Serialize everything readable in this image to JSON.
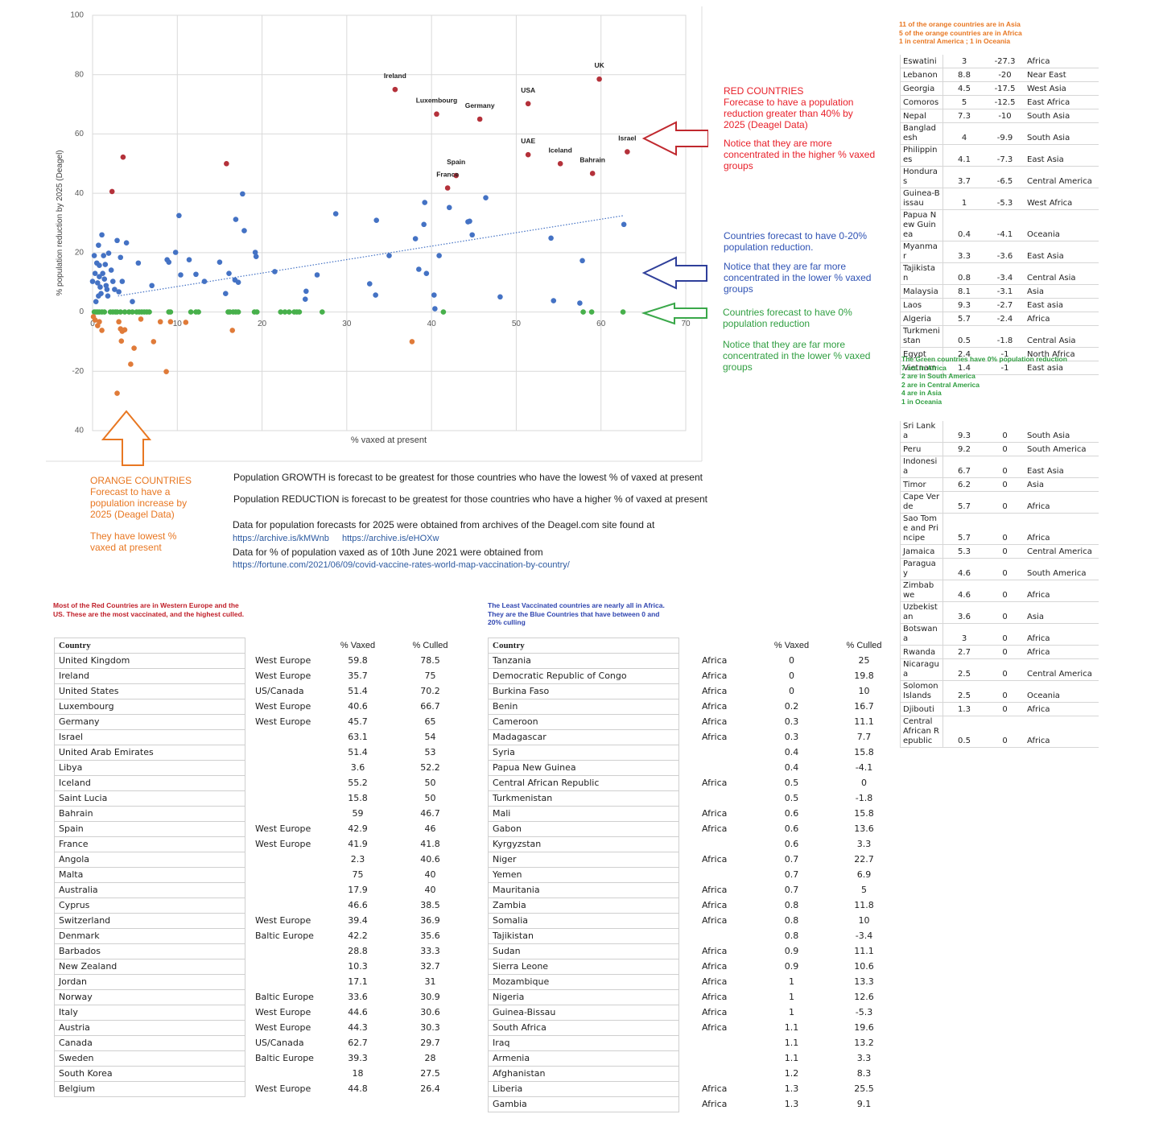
{
  "chart_data": {
    "type": "scatter",
    "xlabel": "% vaxed at present",
    "ylabel": "% population reduction by 2025 (Deagel)",
    "xlim": [
      0,
      70
    ],
    "ylim": [
      -40,
      100
    ],
    "xticks": [
      0,
      10,
      20,
      30,
      40,
      50,
      60,
      70
    ],
    "yticks": [
      100,
      80,
      60,
      40,
      20,
      0,
      -20,
      {
        "value": -40,
        "label": "40"
      }
    ],
    "grid": true,
    "series": [
      {
        "type": "line",
        "style": "dotted",
        "color": "#4472c4",
        "x": [
          3,
          62.7
        ],
        "values": [
          5.4,
          32.5
        ]
      },
      {
        "color": "#b4313a",
        "x": [
          59.8,
          35.7,
          51.4,
          40.6,
          45.7,
          63.1,
          51.4,
          55.2,
          59,
          42.9,
          41.9,
          3.6,
          15.8,
          2.3
        ],
        "values": [
          78.5,
          75,
          70.2,
          66.7,
          65,
          54,
          53,
          50,
          46.7,
          46,
          41.8,
          52.2,
          50,
          40.6
        ],
        "labels": [
          "UK",
          "Ireland",
          "USA",
          "Luxembourg",
          "Germany",
          "Israel",
          "UAE",
          "Iceland",
          "Bahrain",
          "Spain",
          "France",
          null,
          null,
          null
        ]
      },
      {
        "color": "#4472c4",
        "x": [
          0.0,
          0.2,
          0.5,
          0.7,
          0.8,
          1.1,
          1.3,
          1.5,
          1.7,
          0.3,
          0.6,
          0.8,
          0.9,
          1.2,
          1.4,
          1.6,
          1.9,
          2.2,
          0.4,
          0.7,
          1.0,
          1.8,
          2.4,
          2.6,
          2.9,
          3.1,
          3.3,
          3.5,
          4.0,
          4.7,
          5.4,
          7.0,
          8.8,
          9.0,
          9.8,
          10.2,
          10.4,
          11.4,
          12.2,
          13.2,
          15.0,
          15.7,
          16.1,
          16.8,
          16.9,
          17.2,
          17.7,
          17.9,
          19.2,
          19.3,
          21.5,
          25.1,
          25.2,
          26.5,
          28.7,
          32.7,
          33.4,
          33.5,
          35.0,
          38.1,
          38.5,
          39.1,
          39.2,
          39.4,
          40.3,
          40.4,
          40.9,
          42.1,
          44.3,
          44.5,
          44.8,
          46.4,
          48.1,
          54.1,
          54.4,
          57.5,
          57.8,
          62.7
        ],
        "values": [
          10.3,
          19.0,
          16.5,
          22.5,
          15.7,
          26.0,
          19.0,
          16.0,
          7.6,
          13.0,
          9.8,
          11.9,
          8.4,
          13.0,
          11.1,
          8.9,
          19.8,
          14.1,
          3.5,
          5.4,
          6.2,
          5.4,
          10.3,
          7.6,
          24.1,
          6.8,
          18.4,
          10.3,
          23.3,
          3.5,
          16.5,
          8.9,
          17.6,
          16.8,
          20.1,
          32.5,
          12.5,
          17.6,
          12.7,
          10.3,
          16.8,
          6.2,
          13.0,
          10.8,
          31.2,
          10.0,
          39.8,
          27.4,
          20.1,
          18.7,
          13.6,
          4.3,
          7.0,
          12.5,
          33.1,
          9.5,
          5.7,
          30.9,
          19.0,
          24.7,
          14.4,
          29.5,
          36.9,
          13.0,
          5.7,
          1.1,
          19.0,
          35.2,
          30.4,
          30.6,
          26.0,
          38.5,
          5.1,
          24.9,
          3.8,
          3.0,
          17.3,
          29.5
        ]
      },
      {
        "color": "#47b04b",
        "x": [
          0.2,
          0.4,
          0.6,
          0.8,
          1.1,
          1.4,
          2.1,
          2.4,
          2.7,
          2.9,
          3.3,
          3.8,
          4.3,
          4.7,
          5.2,
          5.5,
          5.8,
          6.1,
          6.4,
          6.7,
          9.0,
          9.2,
          11.6,
          12.2,
          12.5,
          16.0,
          16.2,
          16.6,
          16.9,
          17.2,
          19.1,
          19.4,
          22.2,
          22.7,
          23.2,
          23.8,
          24.1,
          24.4,
          27.1,
          41.4,
          57.9,
          58.9,
          62.6
        ],
        "values": [
          0,
          0,
          0,
          0,
          0,
          0,
          0,
          0,
          0,
          0,
          0,
          0,
          0,
          0,
          0,
          0,
          0,
          0,
          0,
          0,
          0,
          0,
          0,
          0,
          0,
          0,
          0,
          0,
          0,
          0,
          0,
          0,
          0,
          0,
          0,
          0,
          0,
          0,
          0,
          0,
          0,
          0,
          0
        ]
      },
      {
        "color": "#e07b39",
        "x": [
          0.1,
          0.3,
          0.6,
          0.8,
          1.1,
          3.1,
          3.3,
          3.5,
          3.8,
          3.4,
          4.9,
          2.9,
          4.5,
          5.7,
          7.2,
          8.0,
          8.7,
          9.2,
          11.0,
          16.5,
          37.7
        ],
        "values": [
          -1.6,
          -2.7,
          -4.6,
          -3.3,
          -6.2,
          -3.3,
          -5.7,
          -6.5,
          -6.0,
          -9.8,
          -12.2,
          -27.4,
          -17.6,
          -2.4,
          -10.0,
          -3.3,
          -20.1,
          -3.3,
          -3.5,
          -6.2,
          -10.0
        ]
      }
    ]
  },
  "annotations": {
    "red": [
      "RED COUNTRIES",
      "Forecase to have a population reduction greater than 40% by 2025 (Deagel Data)",
      "Notice that they are more concentrated in the higher % vaxed groups"
    ],
    "blue": [
      "Countries forecast to have 0-20% population reduction.",
      "Notice that they are far more concentrated in the lower % vaxed groups"
    ],
    "green": [
      "Countries forecast to have 0% population reduction",
      "Notice that they are far more concentrated in the lower % vaxed groups"
    ],
    "orange": [
      "ORANGE COUNTRIES",
      "Forecast to have a population increase by 2025 (Deagel Data)",
      "They have lowest % vaxed at present"
    ]
  },
  "summary": {
    "growth": "Population GROWTH is forecast  to be greatest for those countries who have the lowest % of vaxed at present",
    "reduction": "Population REDUCTION is forecast to be greatest for those countries who have a higher % of vaxed at present",
    "source1": "Data for population forecasts for 2025 were obtained from archives of the Deagel.com site found at",
    "link1": "https://archive.is/kMWnb",
    "link2": "https://archive.is/eHOXw",
    "source2": "Data for % of population vaxed as of 10th June 2021 were obtained from",
    "link3": "https://fortune.com/2021/06/09/covid-vaccine-rates-world-map-vaccination-by-country/"
  },
  "orange_note": [
    "11 of the orange countries are in Asia",
    "5 of the orange countries are in Africa",
    "1 in central America ; 1 in Oceania"
  ],
  "orange_table": {
    "rows": [
      [
        "Eswatini",
        3,
        -27.3,
        "Africa"
      ],
      [
        "Lebanon",
        8.8,
        -20,
        "Near East"
      ],
      [
        "Georgia",
        4.5,
        -17.5,
        "West Asia"
      ],
      [
        "Comoros",
        5,
        -12.5,
        "East Africa"
      ],
      [
        "Nepal",
        7.3,
        -10,
        "South Asia"
      ],
      [
        "Bangladesh",
        4,
        -9.9,
        "South Asia"
      ],
      [
        "Philippines",
        4.1,
        -7.3,
        "East Asia"
      ],
      [
        "Honduras",
        3.7,
        -6.5,
        "Central America"
      ],
      [
        "Guinea-Bissau",
        1,
        -5.3,
        "West Africa"
      ],
      [
        "Papua New Guinea",
        0.4,
        -4.1,
        "Oceania"
      ],
      [
        "Myanmar",
        3.3,
        -3.6,
        "East Asia"
      ],
      [
        "Tajikistan",
        0.8,
        -3.4,
        "Central Asia"
      ],
      [
        "Malaysia",
        8.1,
        -3.1,
        "Asia"
      ],
      [
        "Laos",
        9.3,
        -2.7,
        "East asia"
      ],
      [
        "Algeria",
        5.7,
        -2.4,
        "Africa"
      ],
      [
        "Turkmenistan",
        0.5,
        -1.8,
        "Central Asia"
      ],
      [
        "Egypt",
        2.4,
        -1,
        "North Africa"
      ],
      [
        "Vietnam",
        1.4,
        -1,
        "East asia"
      ]
    ]
  },
  "green_note": [
    "The Green countries have 0% population reduction",
    "7 are in Africa",
    "2 are in South America",
    "2 are in Central America",
    "4 are in Asia",
    "1 in Oceania"
  ],
  "green_table": {
    "rows": [
      [
        "Sri Lanka",
        9.3,
        0,
        "South Asia"
      ],
      [
        "Peru",
        9.2,
        0,
        "South America"
      ],
      [
        "Indonesia",
        6.7,
        0,
        "East Asia"
      ],
      [
        "Timor",
        6.2,
        0,
        "Asia"
      ],
      [
        "Cape Verde",
        5.7,
        0,
        "Africa"
      ],
      [
        "Sao Tome and Principe",
        5.7,
        0,
        "Africa"
      ],
      [
        "Jamaica",
        5.3,
        0,
        "Central America"
      ],
      [
        "Paraguay",
        4.6,
        0,
        "South America"
      ],
      [
        "Zimbabwe",
        4.6,
        0,
        "Africa"
      ],
      [
        "Uzbekistan",
        3.6,
        0,
        "Asia"
      ],
      [
        "Botswana",
        3,
        0,
        "Africa"
      ],
      [
        "Rwanda",
        2.7,
        0,
        "Africa"
      ],
      [
        "Nicaragua",
        2.5,
        0,
        "Central America"
      ],
      [
        "Solomon Islands",
        2.5,
        0,
        "Oceania"
      ],
      [
        "Djibouti",
        1.3,
        0,
        "Africa"
      ],
      [
        "Central African Republic",
        0.5,
        0,
        "Africa"
      ]
    ]
  },
  "red_note": "Most of the Red Countries are in Western Europe and the US. These are the most vaccinated, and the highest culled.",
  "red_table": {
    "header": [
      "Country",
      null,
      "% Vaxed",
      "% Culled"
    ],
    "rows": [
      [
        "United Kingdom",
        "West Europe",
        59.8,
        78.5
      ],
      [
        "Ireland",
        "West Europe",
        35.7,
        75
      ],
      [
        "United States",
        "US/Canada",
        51.4,
        70.2
      ],
      [
        "Luxembourg",
        "West Europe",
        40.6,
        66.7
      ],
      [
        "Germany",
        "West Europe",
        45.7,
        65
      ],
      [
        "Israel",
        null,
        63.1,
        54
      ],
      [
        "United Arab Emirates",
        null,
        51.4,
        53
      ],
      [
        "Libya",
        null,
        3.6,
        52.2
      ],
      [
        "Iceland",
        null,
        55.2,
        50
      ],
      [
        "Saint Lucia",
        null,
        15.8,
        50
      ],
      [
        "Bahrain",
        null,
        59,
        46.7
      ],
      [
        "Spain",
        "West Europe",
        42.9,
        46
      ],
      [
        "France",
        "West Europe",
        41.9,
        41.8
      ],
      [
        "Angola",
        null,
        2.3,
        40.6
      ],
      [
        "Malta",
        null,
        75,
        40
      ],
      [
        "Australia",
        null,
        17.9,
        40
      ],
      [
        "Cyprus",
        null,
        46.6,
        38.5
      ],
      [
        "Switzerland",
        "West Europe",
        39.4,
        36.9
      ],
      [
        "Denmark",
        "Baltic Europe",
        42.2,
        35.6
      ],
      [
        "Barbados",
        null,
        28.8,
        33.3
      ],
      [
        "New Zealand",
        null,
        10.3,
        32.7
      ],
      [
        "Jordan",
        null,
        17.1,
        31
      ],
      [
        "Norway",
        "Baltic Europe",
        33.6,
        30.9
      ],
      [
        "Italy",
        "West Europe",
        44.6,
        30.6
      ],
      [
        "Austria",
        "West Europe",
        44.3,
        30.3
      ],
      [
        "Canada",
        "US/Canada",
        62.7,
        29.7
      ],
      [
        "Sweden",
        "Baltic Europe",
        39.3,
        28
      ],
      [
        "South Korea",
        null,
        18,
        27.5
      ],
      [
        "Belgium",
        "West Europe",
        44.8,
        26.4
      ]
    ]
  },
  "blue_note": "The Least Vaccinated countries are nearly all in Africa. They are the Blue Countries that have between 0 and 20% culling",
  "blue_table": {
    "header": [
      "Country",
      null,
      "% Vaxed",
      "% Culled"
    ],
    "rows": [
      [
        "Tanzania",
        "Africa",
        0,
        25
      ],
      [
        "Democratic Republic of Congo",
        "Africa",
        0,
        19.8
      ],
      [
        "Burkina Faso",
        "Africa",
        0,
        10
      ],
      [
        "Benin",
        "Africa",
        0.2,
        16.7
      ],
      [
        "Cameroon",
        "Africa",
        0.3,
        11.1
      ],
      [
        "Madagascar",
        "Africa",
        0.3,
        7.7
      ],
      [
        "Syria",
        null,
        0.4,
        15.8
      ],
      [
        "Papua New Guinea",
        null,
        0.4,
        -4.1
      ],
      [
        "Central African Republic",
        "Africa",
        0.5,
        0
      ],
      [
        "Turkmenistan",
        null,
        0.5,
        -1.8
      ],
      [
        "Mali",
        "Africa",
        0.6,
        15.8
      ],
      [
        "Gabon",
        "Africa",
        0.6,
        13.6
      ],
      [
        "Kyrgyzstan",
        null,
        0.6,
        3.3
      ],
      [
        "Niger",
        "Africa",
        0.7,
        22.7
      ],
      [
        "Yemen",
        null,
        0.7,
        6.9
      ],
      [
        "Mauritania",
        "Africa",
        0.7,
        5
      ],
      [
        "Zambia",
        "Africa",
        0.8,
        11.8
      ],
      [
        "Somalia",
        "Africa",
        0.8,
        10
      ],
      [
        "Tajikistan",
        null,
        0.8,
        -3.4
      ],
      [
        "Sudan",
        "Africa",
        0.9,
        11.1
      ],
      [
        "Sierra Leone",
        "Africa",
        0.9,
        10.6
      ],
      [
        "Mozambique",
        "Africa",
        1,
        13.3
      ],
      [
        "Nigeria",
        "Africa",
        1,
        12.6
      ],
      [
        "Guinea-Bissau",
        "Africa",
        1,
        -5.3
      ],
      [
        "South Africa",
        "Africa",
        1.1,
        19.6
      ],
      [
        "Iraq",
        null,
        1.1,
        13.2
      ],
      [
        "Armenia",
        null,
        1.1,
        3.3
      ],
      [
        "Afghanistan",
        null,
        1.2,
        8.3
      ],
      [
        "Liberia",
        "Africa",
        1.3,
        25.5
      ],
      [
        "Gambia",
        "Africa",
        1.3,
        9.1
      ]
    ]
  }
}
